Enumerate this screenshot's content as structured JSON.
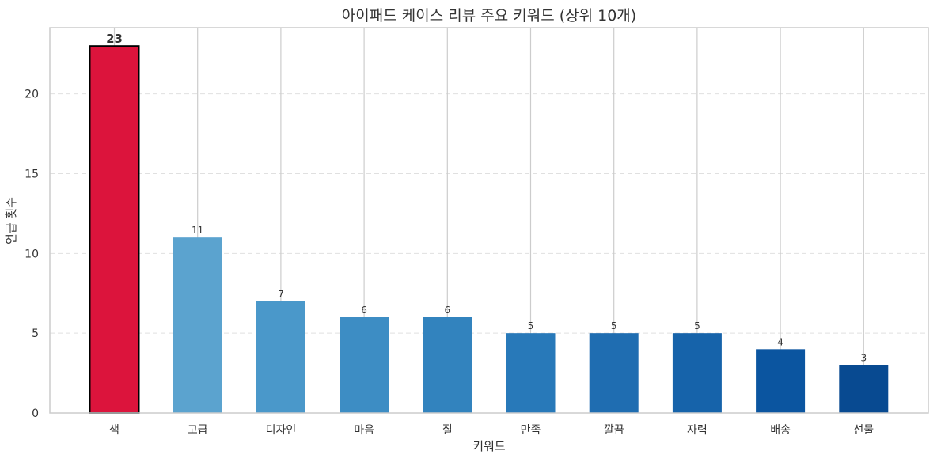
{
  "chart_data": {
    "type": "bar",
    "title": "아이패드 케이스 리뷰 주요 키워드 (상위 10개)",
    "xlabel": "키워드",
    "ylabel": "언급 횟수",
    "categories": [
      "색",
      "고급",
      "디자인",
      "마음",
      "질",
      "만족",
      "깔끔",
      "자력",
      "배송",
      "선물"
    ],
    "values": [
      23,
      11,
      7,
      6,
      6,
      5,
      5,
      5,
      4,
      3
    ],
    "value_labels": [
      "23",
      "11",
      "7",
      "6",
      "6",
      "5",
      "5",
      "5",
      "4",
      "3"
    ],
    "yticks": [
      0,
      5,
      10,
      15,
      20
    ],
    "ytick_labels": [
      "0",
      "5",
      "10",
      "15",
      "20"
    ],
    "ylim": [
      0,
      24.15
    ],
    "grid": true,
    "highlight_index": 0,
    "colors": {
      "highlight": "#dc143c",
      "bars": [
        "#dc143c",
        "#5ba3cf",
        "#4a98ca",
        "#3d8dc4",
        "#3283be",
        "#2879b9",
        "#1f6db1",
        "#1663aa",
        "#0b55a0",
        "#084a91"
      ],
      "gridline": "#e0e0e0",
      "vertical_gridline": "#cccccc",
      "axes": "#cccccc",
      "text": "#333333"
    }
  }
}
